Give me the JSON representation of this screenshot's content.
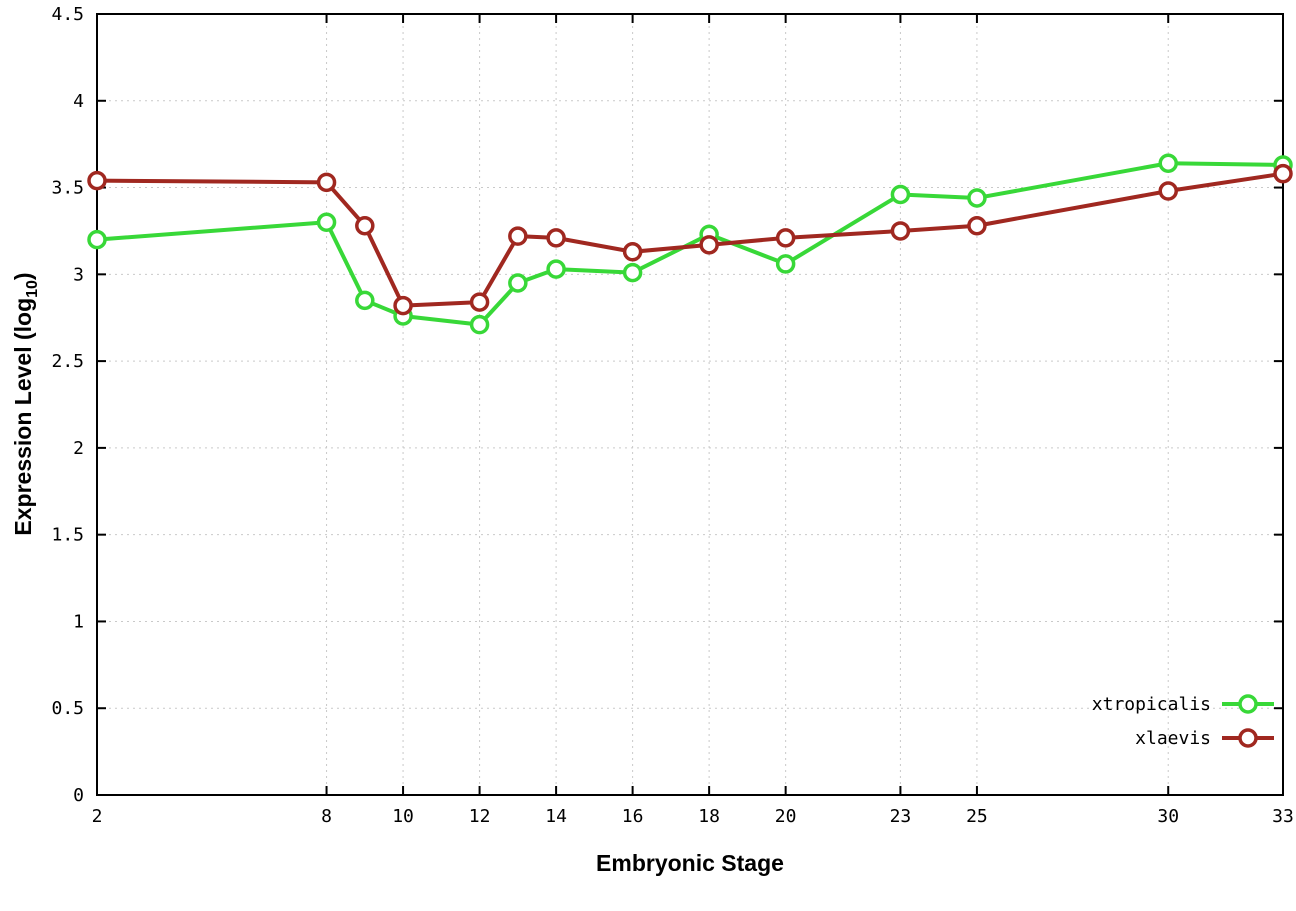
{
  "chart_data": {
    "type": "line",
    "title": "",
    "xlabel": "Embryonic Stage",
    "ylabel": "Expression Level (log10)",
    "ylabel_prefix": "Expression Level (log",
    "ylabel_subscript": "10",
    "ylabel_suffix": ")",
    "xlim": [
      2,
      33
    ],
    "ylim": [
      0,
      4.5
    ],
    "xticks": [
      2,
      8,
      10,
      12,
      14,
      16,
      18,
      20,
      23,
      25,
      30,
      33
    ],
    "yticks": [
      0,
      0.5,
      1,
      1.5,
      2,
      2.5,
      3,
      3.5,
      4,
      4.5
    ],
    "grid": true,
    "grid_color": "#c9c9c9",
    "axis_color": "#000000",
    "legend_position": "bottom-right",
    "x": [
      2,
      8,
      9,
      10,
      12,
      13,
      14,
      16,
      18,
      20,
      23,
      25,
      30,
      33
    ],
    "series": [
      {
        "name": "xtropicalis",
        "color": "#38d838",
        "values": [
          3.2,
          3.3,
          2.85,
          2.76,
          2.71,
          2.95,
          3.03,
          3.01,
          3.23,
          3.06,
          3.46,
          3.44,
          3.64,
          3.63
        ]
      },
      {
        "name": "xlaevis",
        "color": "#a02820",
        "values": [
          3.54,
          3.53,
          3.28,
          2.82,
          2.84,
          3.22,
          3.21,
          3.13,
          3.17,
          3.21,
          3.25,
          3.28,
          3.48,
          3.58
        ]
      }
    ]
  }
}
